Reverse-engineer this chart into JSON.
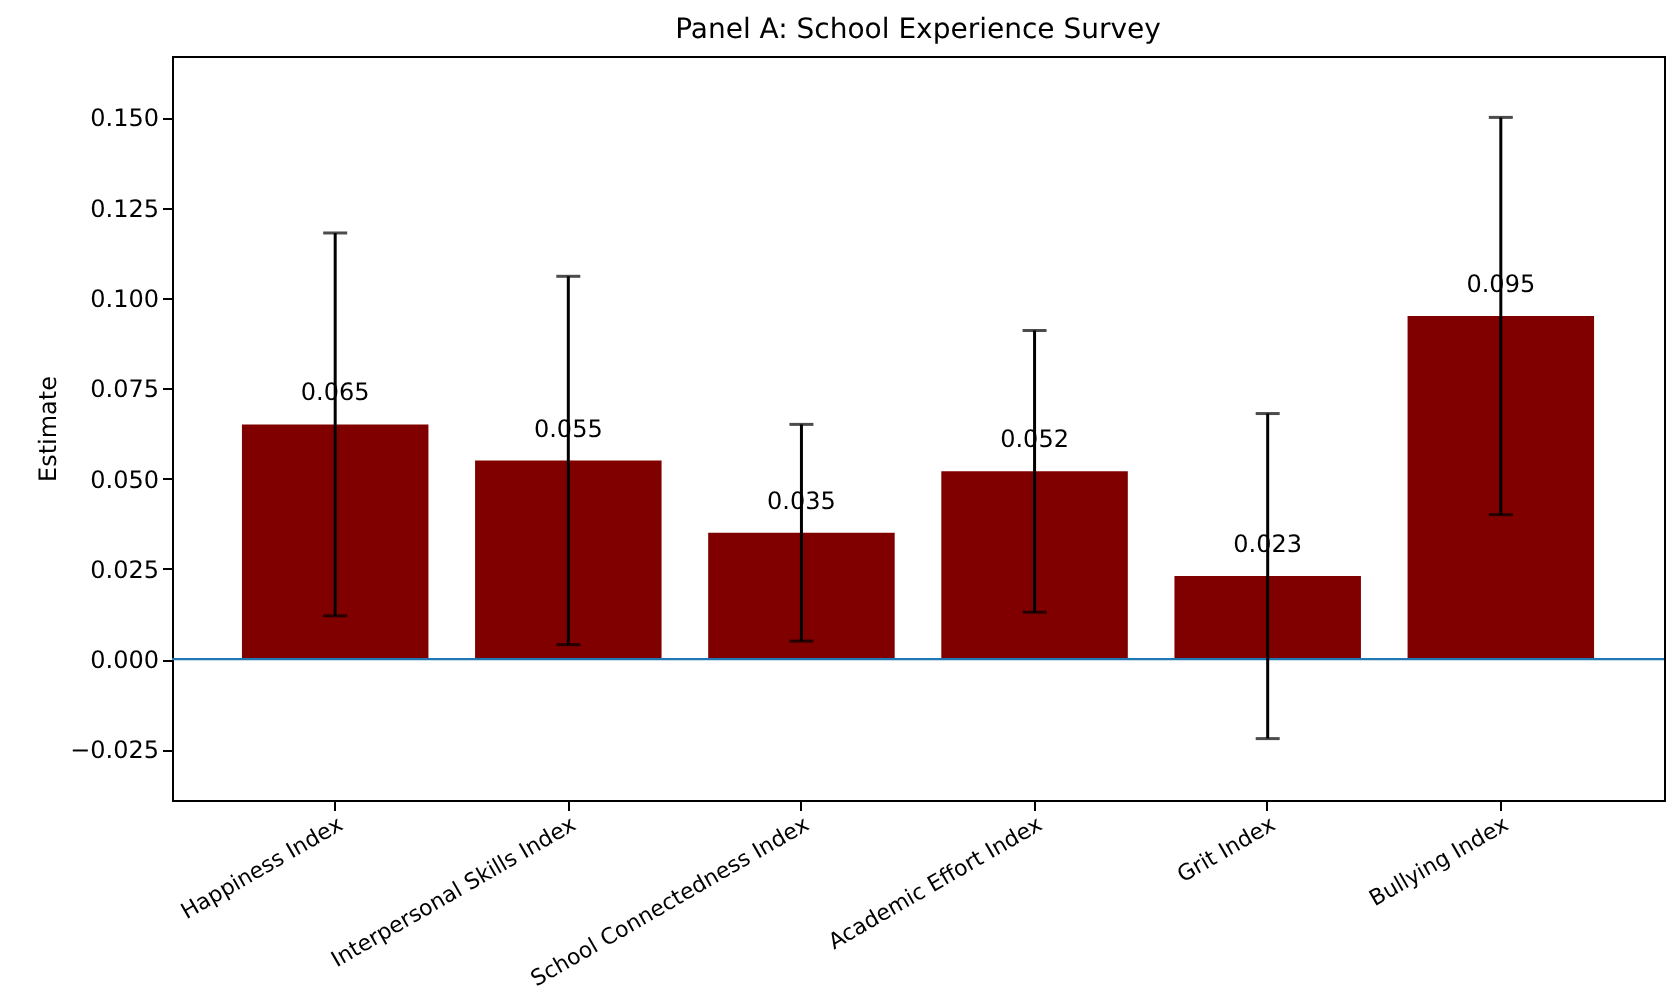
{
  "chart_data": {
    "type": "bar",
    "title": "Panel A: School Experience Survey",
    "ylabel": "Estimate",
    "categories": [
      "Happiness Index",
      "Interpersonal Skills Index",
      "School Connectedness Index",
      "Academic Effort Index",
      "Grit Index",
      "Bullying Index"
    ],
    "values": [
      0.065,
      0.055,
      0.035,
      0.052,
      0.023,
      0.095
    ],
    "errors": [
      0.053,
      0.051,
      0.03,
      0.039,
      0.045,
      0.055
    ],
    "color": "#800000",
    "data_labels": true,
    "ylim": [
      -0.039,
      0.167
    ],
    "yticks": [
      {
        "value": -0.025,
        "label": "−0.025"
      },
      {
        "value": 0,
        "label": "0.000"
      },
      {
        "value": 0.025,
        "label": "0.025"
      },
      {
        "value": 0.05,
        "label": "0.050"
      },
      {
        "value": 0.075,
        "label": "0.075"
      },
      {
        "value": 0.1,
        "label": "0.100"
      },
      {
        "value": 0.125,
        "label": "0.125"
      },
      {
        "value": 0.15,
        "label": "0.150"
      }
    ],
    "ref_lines": [
      {
        "axis": "y",
        "value": 0,
        "color": "#1f77b4"
      }
    ]
  }
}
